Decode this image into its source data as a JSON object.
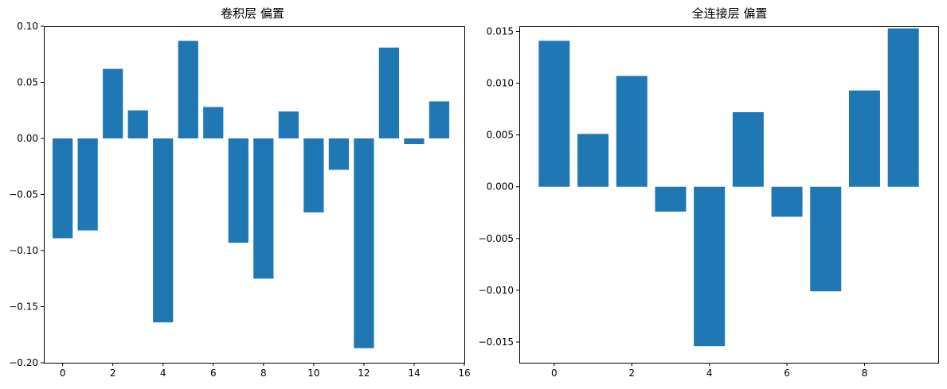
{
  "chart_data": [
    {
      "type": "bar",
      "title": "卷积层 偏置",
      "xlabel": "",
      "ylabel": "",
      "categories": [
        0,
        1,
        2,
        3,
        4,
        5,
        6,
        7,
        8,
        9,
        10,
        11,
        12,
        13,
        14,
        15
      ],
      "values": [
        -0.089,
        -0.082,
        0.062,
        0.025,
        -0.164,
        0.087,
        0.028,
        -0.093,
        -0.125,
        0.024,
        -0.066,
        -0.028,
        -0.187,
        0.081,
        -0.005,
        0.033
      ],
      "bar_width": 0.8,
      "xlim": [
        -0.75,
        16
      ],
      "ylim": [
        -0.2,
        0.1
      ],
      "xticks": [
        0,
        2,
        4,
        6,
        8,
        10,
        12,
        14,
        16
      ],
      "xtick_labels": [
        "0",
        "2",
        "4",
        "6",
        "8",
        "10",
        "12",
        "14",
        "16"
      ],
      "yticks": [
        0.1,
        0.05,
        0.0,
        -0.05,
        -0.1,
        -0.15,
        -0.2
      ],
      "ytick_labels": [
        "0.10",
        "0.05",
        "0.00",
        "−0.05",
        "−0.10",
        "−0.15",
        "−0.20"
      ],
      "color": "#1f77b4",
      "grid": false,
      "legend": "none"
    },
    {
      "type": "bar",
      "title": "全连接层 偏置",
      "xlabel": "",
      "ylabel": "",
      "categories": [
        0,
        1,
        2,
        3,
        4,
        5,
        6,
        7,
        8,
        9
      ],
      "values": [
        0.0141,
        0.0051,
        0.0107,
        -0.0024,
        -0.0154,
        0.0072,
        -0.0029,
        -0.0101,
        0.0093,
        0.0153
      ],
      "bar_width": 0.8,
      "xlim": [
        -0.9,
        9.9
      ],
      "ylim": [
        -0.017,
        0.0155
      ],
      "xticks": [
        0,
        2,
        4,
        6,
        8
      ],
      "xtick_labels": [
        "0",
        "2",
        "4",
        "6",
        "8"
      ],
      "yticks": [
        0.015,
        0.01,
        0.005,
        0.0,
        -0.005,
        -0.01,
        -0.015
      ],
      "ytick_labels": [
        "0.015",
        "0.010",
        "0.005",
        "0.000",
        "−0.005",
        "−0.010",
        "−0.015"
      ],
      "color": "#1f77b4",
      "grid": false,
      "legend": "none"
    }
  ]
}
